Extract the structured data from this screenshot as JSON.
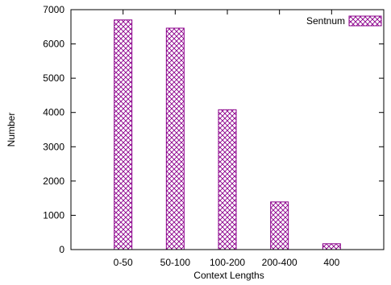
{
  "chart_data": {
    "type": "bar",
    "categories": [
      "0-50",
      "50-100",
      "100-200",
      "200-400",
      "400"
    ],
    "series": [
      {
        "name": "Sentnum",
        "values": [
          6700,
          6460,
          4080,
          1390,
          170
        ]
      }
    ],
    "xlabel": "Context Lengths",
    "ylabel": "Number",
    "ylim": [
      0,
      7000
    ],
    "yticks": [
      0,
      1000,
      2000,
      3000,
      4000,
      5000,
      6000,
      7000
    ],
    "grid": false,
    "legend_position": "top-right",
    "colors": {
      "bar_stroke": "#8b008b",
      "bar_hatch": "#8b008b",
      "bar_fill": "#ffffff",
      "axis": "#000000"
    }
  }
}
